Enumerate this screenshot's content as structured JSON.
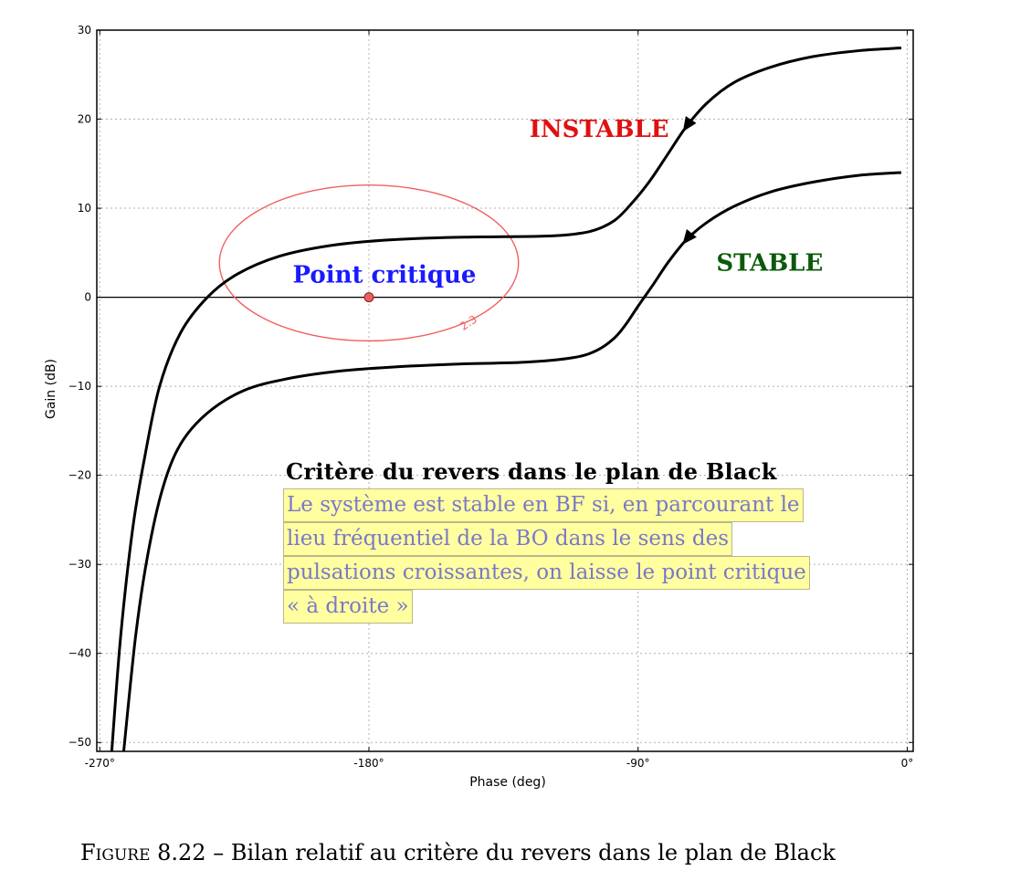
{
  "chart_data": {
    "type": "line",
    "xlabel": "Phase (deg)",
    "ylabel": "Gain (dB)",
    "xlim": [
      -271,
      2
    ],
    "ylim": [
      -51,
      30
    ],
    "xticks": [
      -270,
      -180,
      -90,
      0
    ],
    "xtick_labels": [
      "-270°",
      "-180°",
      "-90°",
      "0°"
    ],
    "yticks": [
      -50,
      -40,
      -30,
      -20,
      -10,
      0,
      10,
      20,
      30
    ],
    "grid": true,
    "series": [
      {
        "name": "INSTABLE",
        "color": "#000000",
        "x": [
          -266,
          -263,
          -259,
          -255,
          -250,
          -243,
          -234,
          -224,
          -210,
          -193,
          -175,
          -155,
          -135,
          -118,
          -106,
          -98,
          -92,
          -86,
          -80,
          -74,
          -67,
          -58,
          -46,
          -32,
          -16,
          -2
        ],
        "y": [
          -51,
          -38,
          -26,
          -18,
          -10,
          -4,
          0,
          2.6,
          4.6,
          5.8,
          6.4,
          6.7,
          6.8,
          6.9,
          7.4,
          8.6,
          10.6,
          13.1,
          16.1,
          19.1,
          21.8,
          24.1,
          25.8,
          27.0,
          27.7,
          28.0
        ],
        "arrow_at": -74,
        "direction": "decreasing-phase"
      },
      {
        "name": "STABLE",
        "color": "#000000",
        "x": [
          -262,
          -258,
          -254,
          -249,
          -243,
          -234,
          -222,
          -208,
          -190,
          -170,
          -150,
          -128,
          -112,
          -104,
          -98,
          -94,
          -90,
          -85,
          -80,
          -74,
          -67,
          -58,
          -46,
          -32,
          -16,
          -2
        ],
        "y": [
          -51,
          -38,
          -29,
          -21.5,
          -16.5,
          -13,
          -10.5,
          -9.2,
          -8.3,
          -7.8,
          -7.5,
          -7.3,
          -6.8,
          -6.0,
          -4.6,
          -3.0,
          -1.0,
          1.4,
          3.9,
          6.4,
          8.4,
          10.2,
          11.8,
          12.9,
          13.7,
          14.0
        ],
        "arrow_at": -74,
        "direction": "decreasing-phase"
      }
    ],
    "critical_point": {
      "x": -180,
      "y": 0,
      "label": "Point critique",
      "label_color": "#1a1aff",
      "color": "#e86060"
    },
    "m_circle": {
      "value_label": "2.3",
      "color": "#f06060",
      "x_range": [
        -230,
        -130
      ],
      "y_range": [
        -4.9,
        12.6
      ]
    },
    "annotations": [
      {
        "text": "INSTABLE",
        "color": "#e01010",
        "x": -103,
        "y": 18
      },
      {
        "text": "STABLE",
        "color": "#0a5a0a",
        "x": -46,
        "y": 3
      }
    ]
  },
  "note": {
    "title": "Critère du revers dans le plan de Black",
    "lines": [
      "Le système est stable en BF si, en parcourant le",
      "lieu fréquentiel de la BO dans le sens des",
      "pulsations croissantes, on laisse le point critique",
      "« à droite »"
    ],
    "text_color": "#7a78c8",
    "highlight_color": "#ffffa0"
  },
  "caption": {
    "prefix": "Figure 8.22",
    "text": " – Bilan relatif au critère du revers dans le plan de Black"
  }
}
